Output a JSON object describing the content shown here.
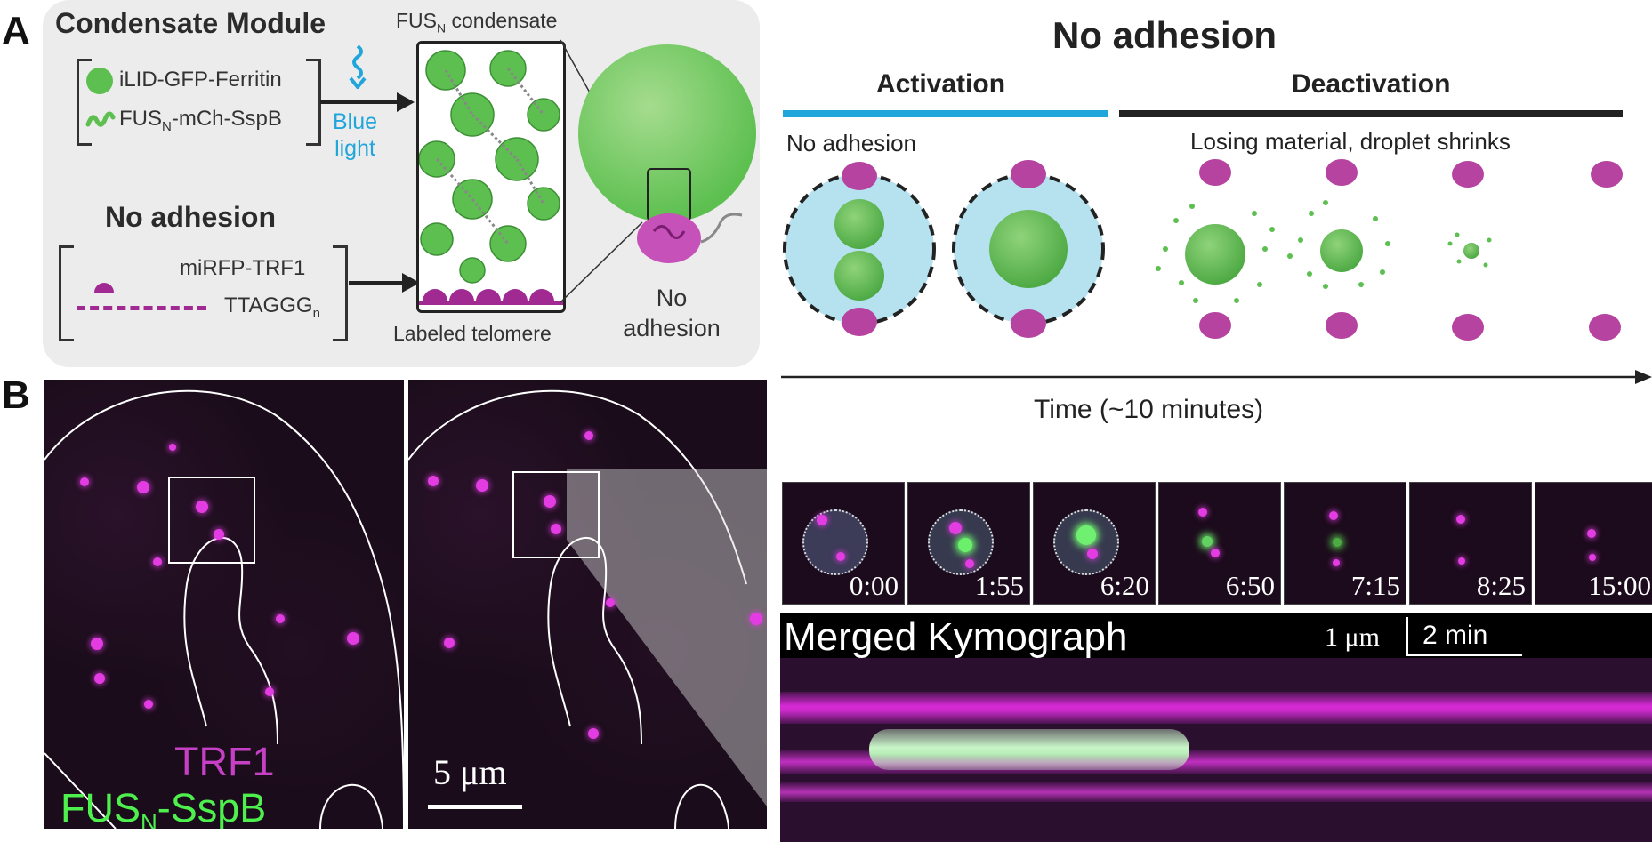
{
  "panels": {
    "a": "A",
    "b": "B"
  },
  "module": {
    "title": "Condensate Module",
    "item1": "iLID-GFP-Ferritin",
    "item2_main": "FUS",
    "item2_sub": "N",
    "item2_rest": "-mCh-SspB",
    "light_line1": "Blue",
    "light_line2": "light",
    "condensate_main": "FUS",
    "condensate_sub": "N",
    "condensate_rest": " condensate",
    "no_adhesion_title": "No adhesion",
    "trf1": "miRFP-TRF1",
    "ttaggg_main": "TTAGGG",
    "ttaggg_sub": "n",
    "labeled_telomere": "Labeled telomere",
    "no_adhesion_line1": "No",
    "no_adhesion_line2": "adhesion"
  },
  "schematic": {
    "title": "No adhesion",
    "activation": "Activation",
    "deactivation": "Deactivation",
    "activation_caption": "No adhesion",
    "deactivation_caption": "Losing material, droplet shrinks",
    "time_axis": "Time (~10 minutes)"
  },
  "micrographs": {
    "legend_trf1": "TRF1",
    "legend_fus_main": "FUS",
    "legend_fus_sub": "N",
    "legend_fus_rest": "-SspB",
    "scalebar": "5 μm"
  },
  "timelapse": {
    "frames": [
      "0:00",
      "1:55",
      "6:20",
      "6:50",
      "7:15",
      "8:25",
      "15:00"
    ]
  },
  "kymograph": {
    "title": "Merged Kymograph",
    "space_scale": "1 μm",
    "time_scale": "2 min"
  },
  "colors": {
    "magenta": "#b5439f",
    "green": "#5cbf4f",
    "blue_light": "#21a6dc",
    "cell_fill": "#b6e2f0"
  }
}
